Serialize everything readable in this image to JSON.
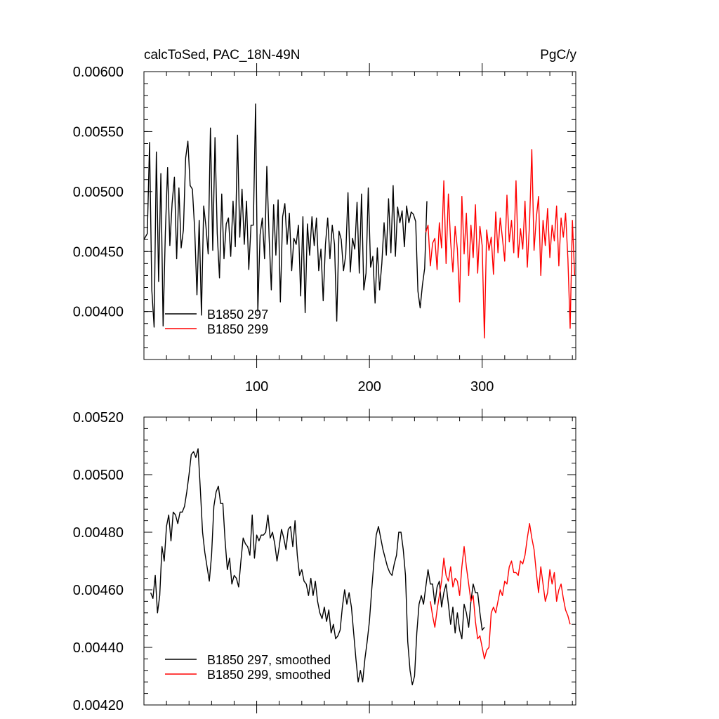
{
  "title_left": "calcToSed, PAC_18N-49N",
  "units": "PgC/y",
  "colors": {
    "series_297": "#000000",
    "series_299": "#ff0000"
  },
  "chart_data": [
    {
      "type": "line",
      "xlim": [
        0,
        383
      ],
      "ylim": [
        0.0036,
        0.006
      ],
      "x_ticks": [
        100,
        200,
        300
      ],
      "x_tick_labels": [
        "100",
        "200",
        "300"
      ],
      "y_ticks": [
        0.004,
        0.0045,
        0.005,
        0.0055,
        0.006
      ],
      "y_tick_labels": [
        "0.00400",
        "0.00450",
        "0.00500",
        "0.00550",
        "0.00600"
      ],
      "legend_position": "bottom-left",
      "series": [
        {
          "name": "B1850 297",
          "color": "#000000",
          "x": [
            0,
            3,
            5,
            7,
            9,
            11,
            13,
            15,
            17,
            19,
            21,
            23,
            25,
            27,
            29,
            31,
            33,
            35,
            37,
            39,
            41,
            43,
            45,
            47,
            49,
            51,
            53,
            55,
            57,
            59,
            61,
            63,
            65,
            67,
            69,
            71,
            73,
            75,
            77,
            79,
            81,
            83,
            85,
            87,
            89,
            91,
            93,
            95,
            97,
            99,
            101,
            103,
            105,
            107,
            109,
            111,
            113,
            115,
            117,
            119,
            121,
            123,
            125,
            127,
            129,
            131,
            133,
            135,
            137,
            139,
            141,
            143,
            145,
            147,
            149,
            151,
            153,
            155,
            157,
            159,
            161,
            163,
            165,
            167,
            169,
            171,
            173,
            175,
            177,
            179,
            181,
            183,
            185,
            187,
            189,
            191,
            193,
            195,
            197,
            199,
            201,
            203,
            205,
            207,
            209,
            211,
            213,
            215,
            217,
            219,
            221,
            223,
            225,
            227,
            229,
            231,
            233,
            235,
            237,
            239,
            241,
            243,
            245,
            247,
            249,
            251
          ],
          "y": [
            0.0046,
            0.00465,
            0.00541,
            0.00418,
            0.00387,
            0.00533,
            0.00425,
            0.00515,
            0.00388,
            0.00466,
            0.0052,
            0.00455,
            0.0049,
            0.00512,
            0.00444,
            0.00503,
            0.00453,
            0.00468,
            0.00528,
            0.00542,
            0.00505,
            0.00502,
            0.00468,
            0.00414,
            0.00476,
            0.00397,
            0.00488,
            0.00471,
            0.00448,
            0.00553,
            0.00451,
            0.00545,
            0.00465,
            0.00428,
            0.00498,
            0.00444,
            0.00473,
            0.00478,
            0.00446,
            0.00492,
            0.00454,
            0.00547,
            0.00462,
            0.00502,
            0.00456,
            0.00492,
            0.00435,
            0.00472,
            0.00472,
            0.00573,
            0.004,
            0.00464,
            0.00478,
            0.00444,
            0.00521,
            0.00463,
            0.00418,
            0.00489,
            0.00447,
            0.00493,
            0.00408,
            0.00479,
            0.0049,
            0.00456,
            0.00482,
            0.00434,
            0.00461,
            0.00456,
            0.00472,
            0.00413,
            0.00479,
            0.00399,
            0.00473,
            0.00447,
            0.00479,
            0.00455,
            0.00478,
            0.00434,
            0.00452,
            0.00409,
            0.00456,
            0.00478,
            0.00444,
            0.00472,
            0.00456,
            0.00392,
            0.00467,
            0.0046,
            0.00434,
            0.00447,
            0.00499,
            0.00433,
            0.00461,
            0.00452,
            0.00491,
            0.00432,
            0.00498,
            0.00418,
            0.00432,
            0.00503,
            0.00437,
            0.00446,
            0.00407,
            0.00453,
            0.00418,
            0.0044,
            0.00474,
            0.00447,
            0.00494,
            0.00449,
            0.00505,
            0.00446,
            0.00487,
            0.00474,
            0.00484,
            0.00454,
            0.00488,
            0.00474,
            0.00483,
            0.00481,
            0.00475,
            0.00417,
            0.00403,
            0.00422,
            0.00436,
            0.00492
          ]
        },
        {
          "name": "B1850 299",
          "color": "#ff0000",
          "x": [
            250,
            252,
            254,
            256,
            258,
            260,
            262,
            264,
            266,
            268,
            270,
            272,
            274,
            276,
            278,
            280,
            282,
            284,
            286,
            288,
            290,
            292,
            294,
            296,
            298,
            300,
            302,
            304,
            306,
            308,
            310,
            312,
            314,
            316,
            318,
            320,
            322,
            324,
            326,
            328,
            330,
            332,
            334,
            336,
            338,
            340,
            342,
            344,
            346,
            348,
            350,
            352,
            354,
            356,
            358,
            360,
            362,
            364,
            366,
            368,
            370,
            372,
            374,
            376,
            378,
            380,
            382
          ],
          "y": [
            0.00466,
            0.00472,
            0.00438,
            0.00457,
            0.00461,
            0.00435,
            0.00474,
            0.00453,
            0.00509,
            0.0044,
            0.00498,
            0.00458,
            0.00433,
            0.00471,
            0.00452,
            0.00408,
            0.00496,
            0.00448,
            0.00482,
            0.0043,
            0.00472,
            0.00445,
            0.00489,
            0.00432,
            0.00471,
            0.00455,
            0.00378,
            0.00468,
            0.00451,
            0.00462,
            0.00431,
            0.00483,
            0.00449,
            0.00478,
            0.00461,
            0.00442,
            0.00497,
            0.00458,
            0.00476,
            0.00449,
            0.00509,
            0.00445,
            0.00469,
            0.00452,
            0.00492,
            0.00437,
            0.00474,
            0.00535,
            0.00451,
            0.00478,
            0.00496,
            0.0043,
            0.00476,
            0.00455,
            0.00486,
            0.00445,
            0.00472,
            0.00459,
            0.00488,
            0.00438,
            0.00478,
            0.00462,
            0.00482,
            0.00444,
            0.00386,
            0.00476,
            0.0043
          ]
        }
      ]
    },
    {
      "type": "line",
      "xlim": [
        0,
        383
      ],
      "ylim": [
        0.0042,
        0.0052
      ],
      "x_ticks": [
        100,
        200,
        300
      ],
      "x_tick_labels": [],
      "y_ticks": [
        0.0042,
        0.0044,
        0.0046,
        0.0048,
        0.005,
        0.0052
      ],
      "y_tick_labels": [
        "0.00420",
        "0.00440",
        "0.00460",
        "0.00480",
        "0.00500",
        "0.00520"
      ],
      "legend_position": "bottom-left",
      "series": [
        {
          "name": "B1850 297, smoothed",
          "color": "#000000",
          "x": [
            6,
            8,
            10,
            12,
            14,
            16,
            18,
            20,
            22,
            24,
            26,
            28,
            30,
            32,
            34,
            36,
            38,
            40,
            42,
            44,
            46,
            48,
            50,
            52,
            54,
            56,
            58,
            60,
            62,
            64,
            66,
            68,
            70,
            72,
            74,
            76,
            78,
            80,
            82,
            84,
            86,
            88,
            90,
            92,
            94,
            96,
            98,
            100,
            102,
            104,
            106,
            108,
            110,
            112,
            114,
            116,
            118,
            120,
            122,
            124,
            126,
            128,
            130,
            132,
            134,
            136,
            138,
            140,
            142,
            144,
            146,
            148,
            150,
            152,
            154,
            156,
            158,
            160,
            162,
            164,
            166,
            168,
            170,
            172,
            174,
            176,
            178,
            180,
            182,
            184,
            186,
            188,
            190,
            192,
            194,
            196,
            198,
            200,
            202,
            204,
            206,
            208,
            210,
            212,
            214,
            216,
            218,
            220,
            222,
            224,
            226,
            228,
            230,
            232,
            234,
            236,
            238,
            240,
            242,
            244,
            246,
            248,
            250,
            252,
            254,
            256,
            258,
            260,
            262,
            264,
            266,
            268,
            270,
            272,
            274,
            276,
            278,
            280,
            282,
            284,
            286,
            288,
            290,
            292,
            294,
            296,
            298,
            300,
            302
          ],
          "y": [
            0.00459,
            0.00457,
            0.00465,
            0.00452,
            0.00458,
            0.00475,
            0.0047,
            0.00482,
            0.00486,
            0.00477,
            0.00487,
            0.00486,
            0.00483,
            0.00487,
            0.00487,
            0.00489,
            0.00494,
            0.005,
            0.00507,
            0.00508,
            0.00506,
            0.00509,
            0.00495,
            0.0048,
            0.00473,
            0.00468,
            0.00463,
            0.00472,
            0.00489,
            0.00494,
            0.00496,
            0.0049,
            0.0049,
            0.00477,
            0.00467,
            0.00471,
            0.00462,
            0.00465,
            0.00464,
            0.00461,
            0.0047,
            0.00478,
            0.00476,
            0.00475,
            0.00472,
            0.00486,
            0.00471,
            0.00479,
            0.00477,
            0.00479,
            0.00479,
            0.0048,
            0.00486,
            0.00478,
            0.0048,
            0.00476,
            0.0047,
            0.00475,
            0.00481,
            0.00478,
            0.00474,
            0.00481,
            0.00482,
            0.00475,
            0.00484,
            0.00472,
            0.00465,
            0.00467,
            0.00463,
            0.00462,
            0.00458,
            0.00464,
            0.00458,
            0.00463,
            0.00456,
            0.00452,
            0.0045,
            0.00454,
            0.00449,
            0.00453,
            0.00445,
            0.00448,
            0.00443,
            0.00444,
            0.00446,
            0.00454,
            0.0046,
            0.00455,
            0.00459,
            0.00454,
            0.00445,
            0.00436,
            0.00428,
            0.00432,
            0.00428,
            0.00436,
            0.00442,
            0.00449,
            0.0046,
            0.0047,
            0.00479,
            0.00482,
            0.00478,
            0.00474,
            0.00471,
            0.00468,
            0.00466,
            0.00465,
            0.00469,
            0.00472,
            0.0048,
            0.0048,
            0.00474,
            0.00465,
            0.00442,
            0.00432,
            0.00427,
            0.0043,
            0.00445,
            0.00455,
            0.00458,
            0.00455,
            0.00461,
            0.00467,
            0.00462,
            0.00462,
            0.00455,
            0.00461,
            0.00463,
            0.00454,
            0.00459,
            0.00462,
            0.00455,
            0.00448,
            0.00454,
            0.00445,
            0.00452,
            0.00446,
            0.00443,
            0.00455,
            0.00452,
            0.00447,
            0.00456,
            0.00462,
            0.00459,
            0.00459,
            0.00452,
            0.00446,
            0.00447
          ]
        },
        {
          "name": "B1850 299, smoothed",
          "color": "#ff0000",
          "x": [
            254,
            256,
            258,
            260,
            262,
            264,
            266,
            268,
            270,
            272,
            274,
            276,
            278,
            280,
            282,
            284,
            286,
            288,
            290,
            292,
            294,
            296,
            298,
            300,
            302,
            304,
            306,
            308,
            310,
            312,
            314,
            316,
            318,
            320,
            322,
            324,
            326,
            328,
            330,
            332,
            334,
            336,
            338,
            340,
            342,
            344,
            346,
            348,
            350,
            352,
            354,
            356,
            358,
            360,
            362,
            364,
            366,
            368,
            370,
            372,
            374,
            376,
            378
          ],
          "y": [
            0.00456,
            0.00451,
            0.00447,
            0.00453,
            0.00458,
            0.00463,
            0.00471,
            0.00465,
            0.00463,
            0.00468,
            0.00461,
            0.00464,
            0.00463,
            0.00458,
            0.00468,
            0.00475,
            0.00468,
            0.00462,
            0.00456,
            0.00458,
            0.00449,
            0.00443,
            0.00444,
            0.0044,
            0.00436,
            0.00439,
            0.0044,
            0.00452,
            0.00454,
            0.00452,
            0.00456,
            0.0046,
            0.00458,
            0.00463,
            0.00462,
            0.00468,
            0.0047,
            0.00466,
            0.00466,
            0.00465,
            0.0047,
            0.00469,
            0.00472,
            0.00478,
            0.00483,
            0.00478,
            0.00474,
            0.00466,
            0.00459,
            0.00468,
            0.00462,
            0.00456,
            0.00459,
            0.00467,
            0.00462,
            0.00466,
            0.00456,
            0.0046,
            0.00462,
            0.00457,
            0.00453,
            0.00451,
            0.00448
          ]
        }
      ]
    }
  ]
}
